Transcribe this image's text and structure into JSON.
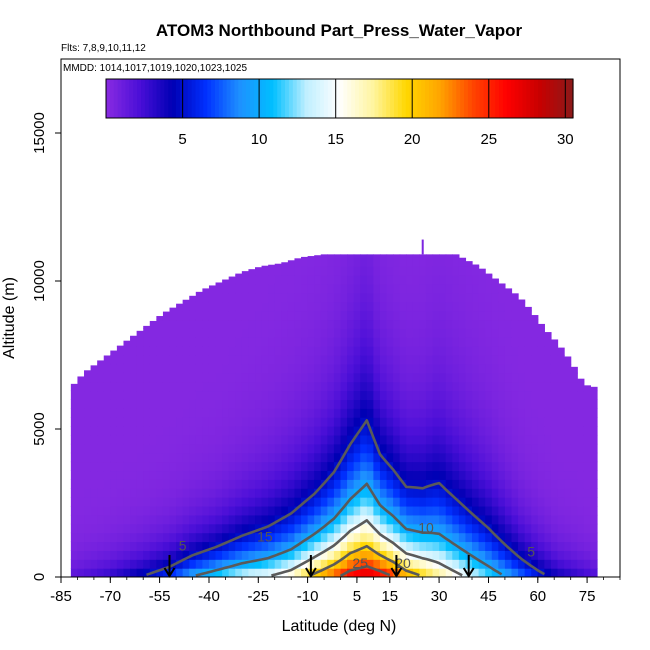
{
  "chart_data": {
    "type": "heatmap",
    "title": "ATOM3 Northbound Part_Press_Water_Vapor",
    "flights_label": "Flts: 7,8,9,10,11,12",
    "dates_label": "MMDD: 1014,1017,1019,1020,1023,1025",
    "xlabel": "Latitude (deg N)",
    "ylabel": "Altitude (m)",
    "xlim": [
      -85,
      85
    ],
    "ylim": [
      0,
      17500
    ],
    "x_ticks": [
      -85,
      -70,
      -55,
      -40,
      -25,
      -10,
      5,
      15,
      30,
      45,
      60,
      75
    ],
    "x_tick_labels": [
      "-85",
      "-70",
      "-55",
      "-40",
      "-25",
      "-10",
      "5",
      "15",
      "30",
      "45",
      "60",
      "75"
    ],
    "y_ticks": [
      0,
      5000,
      10000,
      15000
    ],
    "y_tick_labels": [
      "0",
      "5000",
      "10000",
      "15000"
    ],
    "colorbar": {
      "range": [
        0,
        30.5
      ],
      "ticks": [
        5,
        10,
        15,
        20,
        25,
        30
      ],
      "tick_labels": [
        "5",
        "10",
        "15",
        "20",
        "25",
        "30"
      ],
      "colors": [
        "#8a2be2",
        "#4b0fd8",
        "#0000b4",
        "#0030ff",
        "#1e90ff",
        "#00bfff",
        "#bfefff",
        "#ffffff",
        "#fff5a0",
        "#ffd700",
        "#ffa500",
        "#ff4500",
        "#ff0000",
        "#c80000",
        "#8b1a1a"
      ]
    },
    "altitude_ceiling": [
      {
        "lat": -82,
        "alt": 6400
      },
      {
        "lat": -78,
        "alt": 6900
      },
      {
        "lat": -72,
        "alt": 7400
      },
      {
        "lat": -66,
        "alt": 7900
      },
      {
        "lat": -60,
        "alt": 8400
      },
      {
        "lat": -54,
        "alt": 8900
      },
      {
        "lat": -48,
        "alt": 9300
      },
      {
        "lat": -42,
        "alt": 9700
      },
      {
        "lat": -36,
        "alt": 10000
      },
      {
        "lat": -30,
        "alt": 10300
      },
      {
        "lat": -24,
        "alt": 10500
      },
      {
        "lat": -18,
        "alt": 10600
      },
      {
        "lat": -12,
        "alt": 10800
      },
      {
        "lat": -5,
        "alt": 10900
      },
      {
        "lat": 5,
        "alt": 10900
      },
      {
        "lat": 15,
        "alt": 10900
      },
      {
        "lat": 25,
        "alt": 10900
      },
      {
        "lat": 35,
        "alt": 10900
      },
      {
        "lat": 42,
        "alt": 10500
      },
      {
        "lat": 48,
        "alt": 10000
      },
      {
        "lat": 54,
        "alt": 9500
      },
      {
        "lat": 58,
        "alt": 9000
      },
      {
        "lat": 62,
        "alt": 8400
      },
      {
        "lat": 66,
        "alt": 7900
      },
      {
        "lat": 70,
        "alt": 7300
      },
      {
        "lat": 74,
        "alt": 6500
      },
      {
        "lat": 78,
        "alt": 6400
      }
    ],
    "water_vapor_profile": {
      "lat": [
        -82,
        -70,
        -60,
        -52,
        -45,
        -38,
        -30,
        -22,
        -15,
        -8,
        -2,
        3,
        8,
        12,
        16,
        20,
        25,
        30,
        35,
        40,
        45,
        50,
        55,
        60,
        66,
        72,
        78
      ],
      "surface_value": [
        1.5,
        3,
        5,
        7,
        10,
        12,
        14,
        15,
        17,
        21,
        24,
        27,
        28,
        27,
        25,
        22,
        20,
        18,
        16,
        14,
        12,
        10,
        8,
        6,
        4,
        3,
        2
      ],
      "scale_height_m": [
        600,
        700,
        800,
        900,
        1000,
        1100,
        1300,
        1500,
        1700,
        1900,
        2200,
        2600,
        3000,
        2400,
        2200,
        2000,
        2100,
        2400,
        2200,
        2000,
        1800,
        1500,
        1200,
        1000,
        800,
        700,
        600
      ]
    },
    "contour_levels": [
      5,
      10,
      15,
      20,
      25
    ],
    "contour_labels": [
      {
        "text": "5",
        "lat": -48,
        "alt": 900
      },
      {
        "text": "15",
        "lat": -23,
        "alt": 1200
      },
      {
        "text": "10",
        "lat": 26,
        "alt": 1500
      },
      {
        "text": "25",
        "lat": 6,
        "alt": 300
      },
      {
        "text": "20",
        "lat": 19,
        "alt": 300
      },
      {
        "text": "5",
        "lat": 58,
        "alt": 700
      }
    ],
    "flight_markers_lat": [
      -52,
      -9,
      17,
      39
    ],
    "top_spike_lat": 25
  }
}
